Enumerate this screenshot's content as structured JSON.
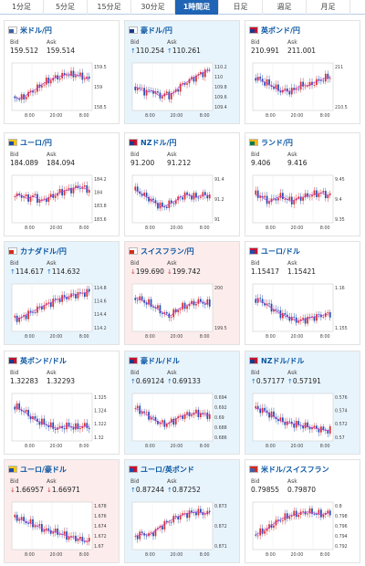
{
  "tabs": [
    "1分足",
    "5分足",
    "15分足",
    "30分足",
    "1時間足",
    "日足",
    "週足",
    "月足"
  ],
  "active_tab": 4,
  "labels": {
    "bid": "Bid",
    "ask": "Ask"
  },
  "colors": {
    "accent": "#1f64b5",
    "up_bg": "#e8f4fc",
    "down_bg": "#fcecec",
    "link": "#0b57a3",
    "candle_up": "#d93030",
    "candle_down": "#1f4fb5",
    "avg": "#c040c8"
  },
  "pairs": [
    {
      "name": "米ドル/円",
      "bid": "159.512",
      "ask": "159.514",
      "dir": "none",
      "flag": [
        "#3c5fa8",
        "#ffffff"
      ],
      "yticks": [
        "159.5",
        "159",
        "158.5"
      ],
      "xticks": [
        "8:00",
        "20:00",
        "8:00"
      ],
      "trend": [
        0.72,
        0.78,
        0.74,
        0.66,
        0.6,
        0.55,
        0.46,
        0.4,
        0.35,
        0.3,
        0.28,
        0.25,
        0.2,
        0.24,
        0.22,
        0.26,
        0.3,
        0.33
      ]
    },
    {
      "name": "豪ドル/円",
      "bid": "110.254",
      "ask": "110.261",
      "dir": "up",
      "flag": [
        "#1a3a8c",
        "#ffffff"
      ],
      "yticks": [
        "110.2",
        "110",
        "109.8",
        "109.6",
        "109.4"
      ],
      "xticks": [
        "8:00",
        "20:00",
        "8:00"
      ],
      "trend": [
        0.5,
        0.55,
        0.6,
        0.62,
        0.58,
        0.68,
        0.72,
        0.66,
        0.7,
        0.62,
        0.5,
        0.44,
        0.38,
        0.32,
        0.26,
        0.2,
        0.16,
        0.12
      ]
    },
    {
      "name": "英ポンド/円",
      "bid": "210.991",
      "ask": "211.001",
      "dir": "none",
      "flag": [
        "#1a3a8c",
        "#c8102e"
      ],
      "yticks": [
        "211",
        "210.5"
      ],
      "xticks": [
        "8:00",
        "20:00",
        "8:00"
      ],
      "trend": [
        0.3,
        0.34,
        0.4,
        0.44,
        0.5,
        0.56,
        0.6,
        0.58,
        0.62,
        0.55,
        0.5,
        0.45,
        0.48,
        0.42,
        0.38,
        0.34,
        0.3,
        0.28
      ]
    },
    {
      "name": "ユーロ/円",
      "bid": "184.089",
      "ask": "184.094",
      "dir": "none",
      "flag": [
        "#1e4aa8",
        "#f5c400"
      ],
      "yticks": [
        "184.2",
        "184",
        "183.8",
        "183.6"
      ],
      "xticks": [
        "8:00",
        "20:00",
        "8:00"
      ],
      "trend": [
        0.45,
        0.4,
        0.44,
        0.5,
        0.42,
        0.48,
        0.55,
        0.5,
        0.46,
        0.42,
        0.36,
        0.32,
        0.3,
        0.28,
        0.24,
        0.22,
        0.26,
        0.3
      ]
    },
    {
      "name": "NZドル/円",
      "bid": "91.200",
      "ask": "91.212",
      "dir": "none",
      "flag": [
        "#1a3a8c",
        "#c8102e"
      ],
      "yticks": [
        "91.4",
        "91.2",
        "91"
      ],
      "xticks": [
        "8:00",
        "20:00",
        "8:00"
      ],
      "trend": [
        0.3,
        0.35,
        0.42,
        0.48,
        0.55,
        0.62,
        0.68,
        0.66,
        0.6,
        0.55,
        0.48,
        0.42,
        0.4,
        0.44,
        0.46,
        0.42,
        0.4,
        0.44
      ]
    },
    {
      "name": "ランド/円",
      "bid": "9.406",
      "ask": "9.416",
      "dir": "none",
      "flag": [
        "#007a4d",
        "#ffb612"
      ],
      "yticks": [
        "9.45",
        "9.4",
        "9.35"
      ],
      "xticks": [
        "8:00",
        "20:00",
        "8:00"
      ],
      "trend": [
        0.4,
        0.42,
        0.5,
        0.56,
        0.52,
        0.46,
        0.44,
        0.5,
        0.55,
        0.52,
        0.48,
        0.45,
        0.42,
        0.4,
        0.38,
        0.36,
        0.4,
        0.42
      ]
    },
    {
      "name": "カナダドル/円",
      "bid": "114.617",
      "ask": "114.632",
      "dir": "up",
      "flag": [
        "#d52b1e",
        "#ffffff"
      ],
      "yticks": [
        "114.8",
        "114.6",
        "114.4",
        "114.2"
      ],
      "xticks": [
        "8:00",
        "20:00",
        "8:00"
      ],
      "trend": [
        0.72,
        0.76,
        0.7,
        0.64,
        0.6,
        0.54,
        0.48,
        0.44,
        0.4,
        0.34,
        0.3,
        0.28,
        0.26,
        0.22,
        0.2,
        0.18,
        0.16,
        0.14
      ]
    },
    {
      "name": "スイスフラン/円",
      "bid": "199.690",
      "ask": "199.742",
      "dir": "down",
      "flag": [
        "#d52b1e",
        "#ffffff"
      ],
      "yticks": [
        "200",
        "199.5"
      ],
      "xticks": [
        "8:00",
        "20:00",
        "8:00"
      ],
      "trend": [
        0.28,
        0.3,
        0.36,
        0.4,
        0.46,
        0.52,
        0.6,
        0.66,
        0.7,
        0.6,
        0.52,
        0.48,
        0.44,
        0.4,
        0.38,
        0.36,
        0.4,
        0.42
      ]
    },
    {
      "name": "ユーロ/ドル",
      "bid": "1.15417",
      "ask": "1.15421",
      "dir": "none",
      "flag": [
        "#1e4aa8",
        "#c8102e"
      ],
      "yticks": [
        "1.16",
        "1.155"
      ],
      "xticks": [
        "8:00",
        "20:00",
        "8:00"
      ],
      "trend": [
        0.3,
        0.34,
        0.4,
        0.46,
        0.54,
        0.6,
        0.66,
        0.7,
        0.74,
        0.78,
        0.8,
        0.78,
        0.74,
        0.72,
        0.7,
        0.68,
        0.66,
        0.64
      ]
    },
    {
      "name": "英ポンド/ドル",
      "bid": "1.32283",
      "ask": "1.32293",
      "dir": "none",
      "flag": [
        "#1a3a8c",
        "#c8102e"
      ],
      "yticks": [
        "1.325",
        "1.324",
        "1.322",
        "1.32"
      ],
      "xticks": [
        "8:00",
        "20:00",
        "8:00"
      ],
      "trend": [
        0.26,
        0.3,
        0.36,
        0.44,
        0.52,
        0.58,
        0.62,
        0.66,
        0.7,
        0.74,
        0.76,
        0.72,
        0.7,
        0.72,
        0.74,
        0.72,
        0.7,
        0.72
      ]
    },
    {
      "name": "豪ドル/ドル",
      "bid": "0.69124",
      "ask": "0.69133",
      "dir": "up",
      "flag": [
        "#1a3a8c",
        "#c8102e"
      ],
      "yticks": [
        "0.694",
        "0.692",
        "0.69",
        "0.688",
        "0.686"
      ],
      "xticks": [
        "8:00",
        "20:00",
        "8:00"
      ],
      "trend": [
        0.3,
        0.34,
        0.4,
        0.46,
        0.54,
        0.6,
        0.64,
        0.66,
        0.62,
        0.56,
        0.5,
        0.46,
        0.44,
        0.42,
        0.4,
        0.42,
        0.44,
        0.46
      ]
    },
    {
      "name": "NZドル/ドル",
      "bid": "0.57177",
      "ask": "0.57191",
      "dir": "up",
      "flag": [
        "#1a3a8c",
        "#c8102e"
      ],
      "yticks": [
        "0.576",
        "0.574",
        "0.572",
        "0.57"
      ],
      "xticks": [
        "8:00",
        "20:00",
        "8:00"
      ],
      "trend": [
        0.3,
        0.32,
        0.36,
        0.42,
        0.48,
        0.54,
        0.6,
        0.62,
        0.64,
        0.66,
        0.68,
        0.7,
        0.72,
        0.74,
        0.76,
        0.78,
        0.8,
        0.8
      ]
    },
    {
      "name": "ユーロ/豪ドル",
      "bid": "1.66957",
      "ask": "1.66971",
      "dir": "down",
      "flag": [
        "#1e4aa8",
        "#f5c400"
      ],
      "yticks": [
        "1.678",
        "1.676",
        "1.674",
        "1.672",
        "1.67"
      ],
      "xticks": [
        "8:00",
        "20:00",
        "8:00"
      ],
      "trend": [
        0.3,
        0.34,
        0.38,
        0.42,
        0.46,
        0.5,
        0.55,
        0.6,
        0.62,
        0.64,
        0.66,
        0.7,
        0.74,
        0.76,
        0.78,
        0.82,
        0.84,
        0.86
      ]
    },
    {
      "name": "ユーロ/英ポンド",
      "bid": "0.87244",
      "ask": "0.87252",
      "dir": "up",
      "flag": [
        "#1e4aa8",
        "#c8102e"
      ],
      "yticks": [
        "0.873",
        "0.872",
        "0.871"
      ],
      "xticks": [
        "8:00",
        "20:00",
        "8:00"
      ],
      "trend": [
        0.74,
        0.7,
        0.68,
        0.72,
        0.66,
        0.58,
        0.5,
        0.44,
        0.38,
        0.32,
        0.28,
        0.24,
        0.22,
        0.2,
        0.18,
        0.2,
        0.22,
        0.2
      ]
    },
    {
      "name": "米ドル/スイスフラン",
      "bid": "0.79855",
      "ask": "0.79870",
      "dir": "none",
      "flag": [
        "#3c5fa8",
        "#d52b1e"
      ],
      "yticks": [
        "0.8",
        "0.798",
        "0.796",
        "0.794",
        "0.792"
      ],
      "xticks": [
        "8:00",
        "20:00",
        "8:00"
      ],
      "trend": [
        0.7,
        0.66,
        0.6,
        0.54,
        0.46,
        0.4,
        0.34,
        0.3,
        0.26,
        0.24,
        0.22,
        0.2,
        0.18,
        0.2,
        0.22,
        0.24,
        0.22,
        0.2
      ]
    }
  ]
}
